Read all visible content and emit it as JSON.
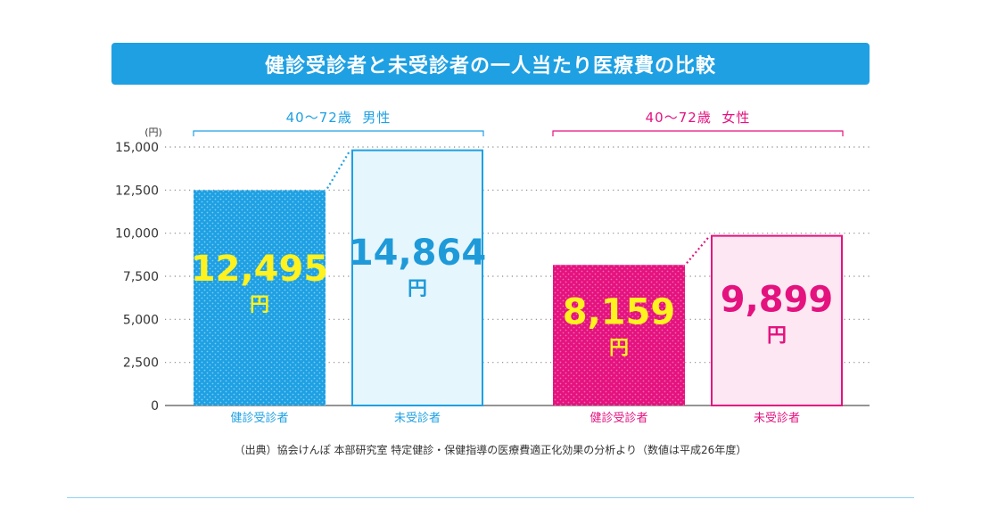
{
  "title": "健診受診者と未受診者の一人当たり医療費の比較",
  "source": "（出典）協会けんぽ 本部研究室 特定健診・保健指導の医療費適正化効果の分析より（数値は平成26年度）",
  "colors": {
    "banner": "#1ea0e3",
    "male_checked": "#1ea0e3",
    "male_unchecked_fill": "#e6f6fd",
    "male_unchecked_text": "#1e9ad9",
    "female_checked": "#e4127f",
    "female_unchecked_fill": "#fde7f2",
    "female_unchecked_text": "#e4127f",
    "highlight_text": "#fff21e"
  },
  "chart_data": {
    "type": "bar",
    "unit_label": "(円)",
    "ylim": [
      0,
      15000
    ],
    "yticks": [
      "0",
      "2,500",
      "5,000",
      "7,500",
      "10,000",
      "12,500",
      "15,000"
    ],
    "grid": true,
    "groups": [
      {
        "label": "40～72歳  男性",
        "bars": [
          {
            "category": "健診受診者",
            "value": 12495,
            "value_label": "12,495",
            "unit": "円"
          },
          {
            "category": "未受診者",
            "value": 14864,
            "value_label": "14,864",
            "unit": "円"
          }
        ]
      },
      {
        "label": "40～72歳  女性",
        "bars": [
          {
            "category": "健診受診者",
            "value": 8159,
            "value_label": "8,159",
            "unit": "円"
          },
          {
            "category": "未受診者",
            "value": 9899,
            "value_label": "9,899",
            "unit": "円"
          }
        ]
      }
    ]
  }
}
